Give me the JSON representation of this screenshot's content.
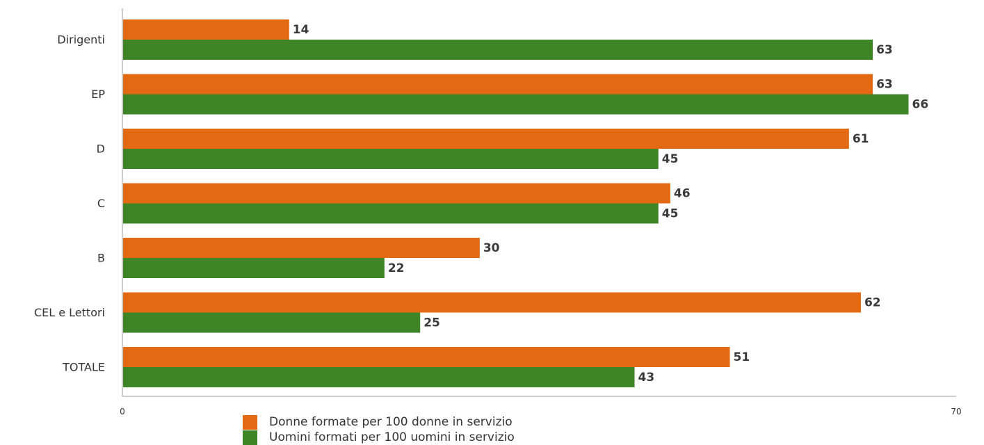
{
  "chart_data": {
    "type": "bar",
    "orientation": "horizontal",
    "categories": [
      "Dirigenti",
      "EP",
      "D",
      "C",
      "B",
      "CEL e Lettori",
      "TOTALE"
    ],
    "series": [
      {
        "name": "Donne formate per 100 donne in servizio",
        "color": "#E36A12",
        "values": [
          14,
          63,
          61,
          46,
          30,
          62,
          51
        ]
      },
      {
        "name": "Uomini formati per 100 uomini in servizio",
        "color": "#3E8527",
        "values": [
          63,
          66,
          45,
          45,
          22,
          25,
          43
        ]
      }
    ],
    "xlim": [
      0,
      70
    ],
    "x_ticks": [
      "0",
      "70"
    ],
    "grid": false,
    "legend_position": "bottom"
  }
}
